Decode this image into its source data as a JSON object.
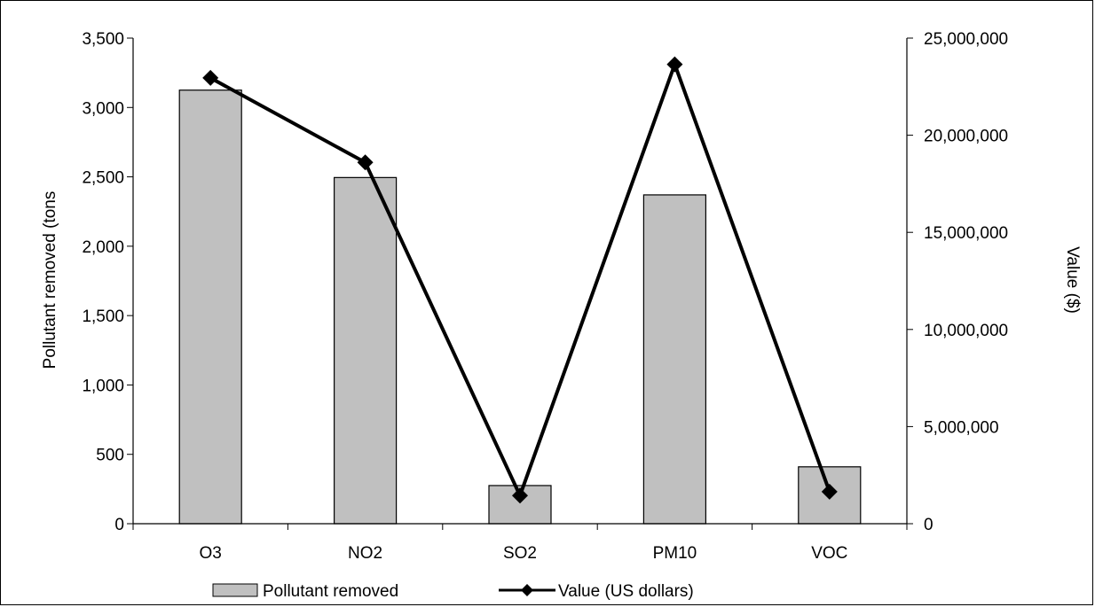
{
  "chart_data": {
    "type": "bar",
    "categories": [
      "O3",
      "NO2",
      "SO2",
      "PM10",
      "VOC"
    ],
    "series": [
      {
        "name": "Pollutant removed",
        "type": "bar",
        "axis": "left",
        "values": [
          3125,
          2495,
          275,
          2370,
          410
        ],
        "color": "#c0c0c0"
      },
      {
        "name": "Value (US dollars)",
        "type": "line",
        "axis": "right",
        "values": [
          22950000,
          18600000,
          1450000,
          23650000,
          1650000
        ],
        "color": "#000000"
      }
    ],
    "title": "",
    "ylabel": "Pollutant removed (tons",
    "y2label": "Value ($)",
    "ylim": [
      0,
      3500
    ],
    "y2lim": [
      0,
      25000000
    ],
    "yticks": [
      "0",
      "500",
      "1,000",
      "1,500",
      "2,000",
      "2,500",
      "3,000",
      "3,500"
    ],
    "y2ticks": [
      "0",
      "5,000,000",
      "10,000,000",
      "15,000,000",
      "20,000,000",
      "25,000,000"
    ],
    "grid": false,
    "legend": "bottom"
  }
}
